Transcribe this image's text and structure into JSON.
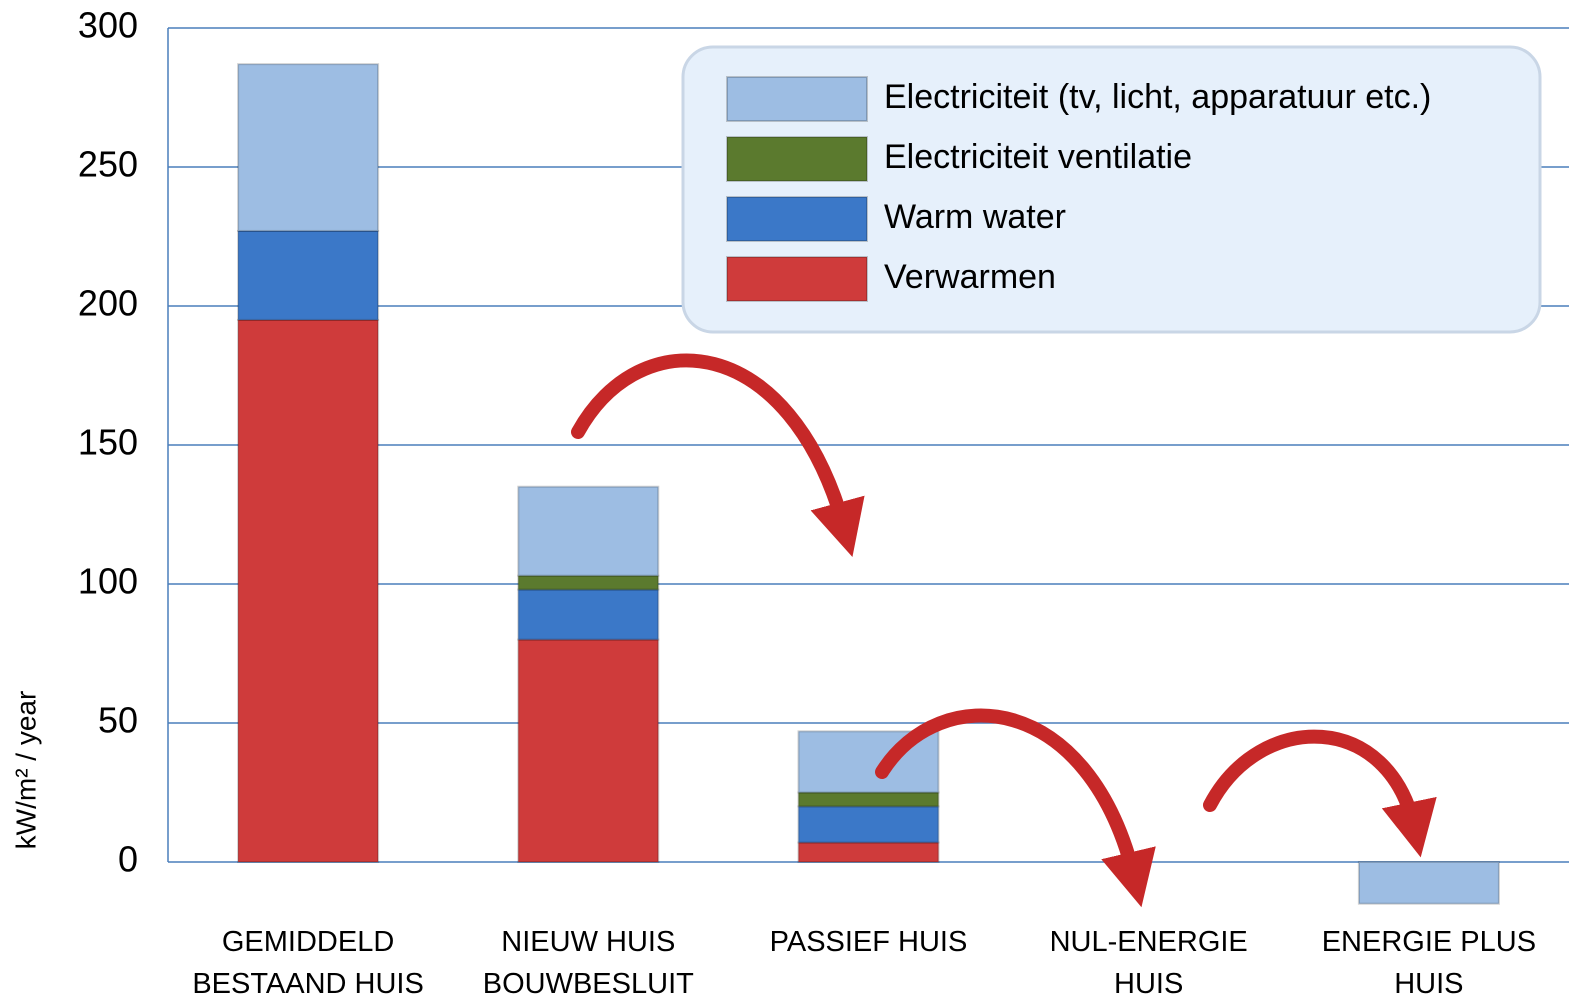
{
  "chart_data": {
    "type": "stacked_bar",
    "y_label": "kW/m² / year",
    "categories": [
      "GEMIDDELD\nBESTAAND HUIS",
      "NIEUW HUIS\nBOUWBESLUIT",
      "PASSIEF HUIS",
      "NUL-ENERGIE\nHUIS",
      "ENERGIE PLUS\nHUIS"
    ],
    "series": [
      {
        "name": "Electriciteit (tv, licht, apparatuur etc.)",
        "color": "#9dbde3",
        "values": [
          60,
          32,
          22,
          0,
          -15
        ]
      },
      {
        "name": "Electriciteit ventilatie",
        "color": "#5b7a2e",
        "values": [
          0,
          5,
          5,
          0,
          0
        ]
      },
      {
        "name": "Warm water",
        "color": "#3b78c8",
        "values": [
          32,
          18,
          13,
          0,
          0
        ]
      },
      {
        "name": "Verwarmen",
        "color": "#cf3b3b",
        "values": [
          195,
          80,
          7,
          0,
          0
        ]
      }
    ],
    "ylim": [
      0,
      300
    ],
    "yticks": [
      0,
      50,
      100,
      150,
      200,
      250,
      300
    ],
    "grid": true
  }
}
